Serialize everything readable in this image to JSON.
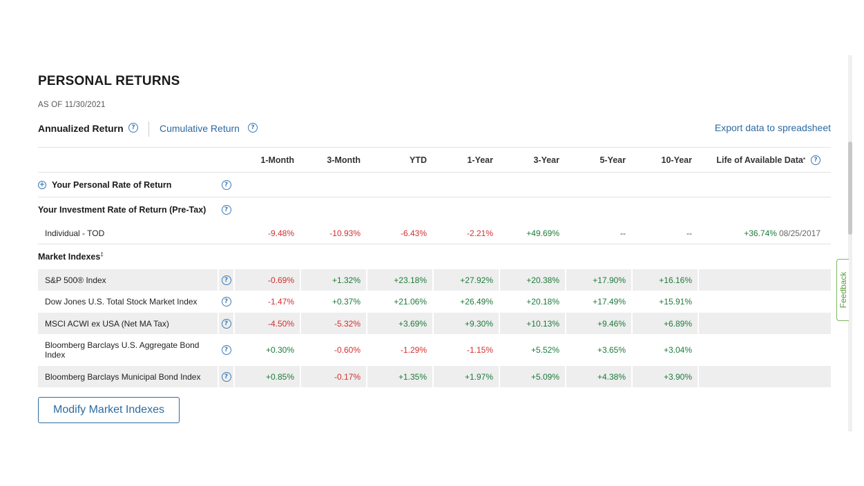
{
  "page": {
    "title": "PERSONAL RETURNS",
    "as_of": "AS OF 11/30/2021"
  },
  "tabs": {
    "active": "Annualized Return",
    "inactive": "Cumulative Return",
    "export": "Export data to spreadsheet"
  },
  "icons": {
    "help": "question-circle-icon",
    "expand": "plus-circle-icon"
  },
  "table": {
    "columns": [
      "1-Month",
      "3-Month",
      "YTD",
      "1-Year",
      "3-Year",
      "5-Year",
      "10-Year",
      "Life of Available Data"
    ],
    "life_superscript": "*",
    "personal_rate_label": "Your Personal Rate of Return",
    "investment_rate_label": "Your Investment Rate of Return (Pre-Tax)",
    "account": {
      "name": "Individual - TOD",
      "values": [
        "-9.48%",
        "-10.93%",
        "-6.43%",
        "-2.21%",
        "+49.69%",
        "--",
        "--"
      ],
      "life_value": "+36.74%",
      "life_date": "08/25/2017"
    },
    "market_indexes_label": "Market Indexes",
    "market_indexes_superscript": "‡",
    "indexes": [
      {
        "name": "S&P 500® Index",
        "values": [
          "-0.69%",
          "+1.32%",
          "+23.18%",
          "+27.92%",
          "+20.38%",
          "+17.90%",
          "+16.16%"
        ]
      },
      {
        "name": "Dow Jones U.S. Total Stock Market Index",
        "values": [
          "-1.47%",
          "+0.37%",
          "+21.06%",
          "+26.49%",
          "+20.18%",
          "+17.49%",
          "+15.91%"
        ]
      },
      {
        "name": "MSCI ACWI ex USA (Net MA Tax)",
        "values": [
          "-4.50%",
          "-5.32%",
          "+3.69%",
          "+9.30%",
          "+10.13%",
          "+9.46%",
          "+6.89%"
        ]
      },
      {
        "name": "Bloomberg Barclays U.S. Aggregate Bond Index",
        "values": [
          "+0.30%",
          "-0.60%",
          "-1.29%",
          "-1.15%",
          "+5.52%",
          "+3.65%",
          "+3.04%"
        ]
      },
      {
        "name": "Bloomberg Barclays Municipal Bond Index",
        "values": [
          "+0.85%",
          "-0.17%",
          "+1.35%",
          "+1.97%",
          "+5.09%",
          "+4.38%",
          "+3.90%"
        ]
      }
    ]
  },
  "buttons": {
    "modify": "Modify Market Indexes"
  },
  "feedback": "Feedback",
  "colors": {
    "negative": "#d12f2f",
    "positive": "#1c7a3a",
    "link": "#2c6aa0",
    "row_stripe": "#eeeeee",
    "feedback_border": "#7ab55c"
  }
}
